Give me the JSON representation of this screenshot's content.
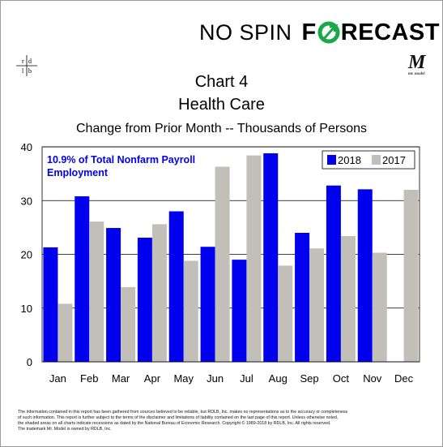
{
  "brand": {
    "left": "NO SPIN",
    "right_prefix": "F",
    "right_suffix": "RECAST",
    "logo_left": "rdlb",
    "logo_right": "M",
    "logo_right_caption": "mr. model"
  },
  "colors": {
    "series_2018": "#0000ee",
    "series_2017": "#c2bfb8",
    "brand_green": "#1aa84a",
    "annotation": "#0000ee"
  },
  "chart_data": {
    "type": "bar",
    "title": "Chart 4",
    "title2": "Health Care",
    "subtitle": "Change from Prior Month -- Thousands of Persons",
    "annotation": [
      "10.9% of Total Nonfarm Payroll",
      "Employment"
    ],
    "categories": [
      "Jan",
      "Feb",
      "Mar",
      "Apr",
      "May",
      "Jun",
      "Jul",
      "Aug",
      "Sep",
      "Oct",
      "Nov",
      "Dec"
    ],
    "series": [
      {
        "name": "2018",
        "values": [
          21.3,
          30.8,
          24.9,
          23.1,
          28.0,
          21.4,
          19.0,
          38.8,
          24.0,
          32.8,
          32.1,
          null
        ]
      },
      {
        "name": "2017",
        "values": [
          10.8,
          26.1,
          13.9,
          25.6,
          18.8,
          36.3,
          38.4,
          17.9,
          21.1,
          23.4,
          20.3,
          32.0
        ]
      }
    ],
    "yticks": [
      0,
      10,
      20,
      30,
      40
    ],
    "ylim": [
      0,
      40
    ],
    "grid": "horizontal",
    "legend_position": "top-right"
  },
  "footer": {
    "line1": "The information contained in this report has been gathered from sources believed to be reliable, but RDLB, Inc. makes no representations as to the accuracy or completeness",
    "line2": "of such information. This report is further subject to the terms of the disclaimer and limitations of liability contained on the last page of this report. Unless otherwise noted,",
    "line3": "the shaded areas on all charts indicate recessions as dated by the National Bureau of Economic Research. Copyright © 1989-2018 by RDLB, Inc. All rights reserved.",
    "line4": "The trademark Mr. Model is owned by RDLB, Inc."
  }
}
